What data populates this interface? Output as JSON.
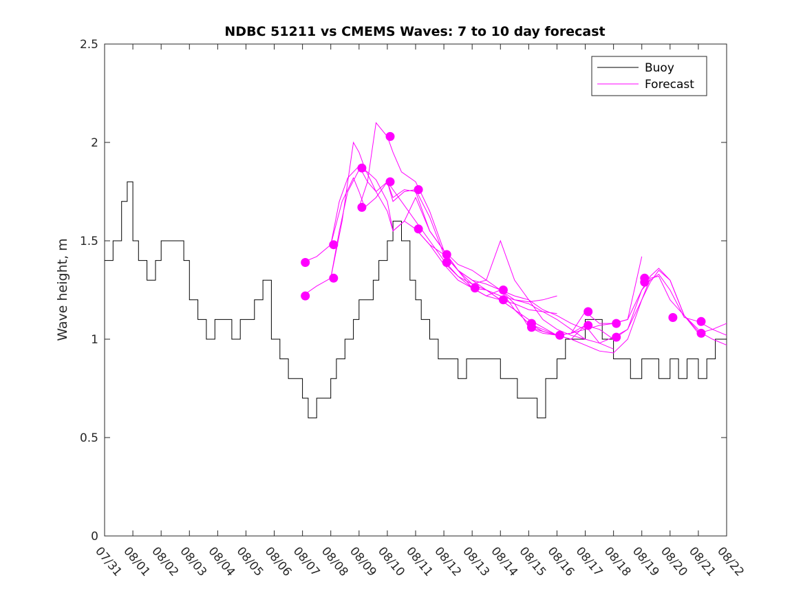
{
  "chart_data": {
    "type": "line",
    "title": "NDBC 51211 vs CMEMS Waves: 7 to 10 day forecast",
    "xlabel": "",
    "ylabel": "Wave height, m",
    "xlim": [
      0,
      22
    ],
    "ylim": [
      0,
      2.5
    ],
    "yticks": [
      0,
      0.5,
      1,
      1.5,
      2,
      2.5
    ],
    "ytick_labels": [
      "0",
      "0.5",
      "1",
      "1.5",
      "2",
      "2.5"
    ],
    "xticks": [
      0,
      1,
      2,
      3,
      4,
      5,
      6,
      7,
      8,
      9,
      10,
      11,
      12,
      13,
      14,
      15,
      16,
      17,
      18,
      19,
      20,
      21,
      22
    ],
    "xtick_labels": [
      "07/31",
      "08/01",
      "08/02",
      "08/03",
      "08/04",
      "08/05",
      "08/06",
      "08/07",
      "08/08",
      "08/09",
      "08/10",
      "08/11",
      "08/12",
      "08/13",
      "08/14",
      "08/15",
      "08/16",
      "08/17",
      "08/18",
      "08/19",
      "08/20",
      "08/21",
      "08/22"
    ],
    "legend": {
      "position": "top-right",
      "entries": [
        "Buoy",
        "Forecast"
      ]
    },
    "colors": {
      "buoy": "#000000",
      "forecast": "#ff00ff"
    },
    "series": [
      {
        "name": "Buoy",
        "x": [
          0,
          0.3,
          0.6,
          0.8,
          1.0,
          1.2,
          1.5,
          1.8,
          2.0,
          2.2,
          2.5,
          2.8,
          3.0,
          3.3,
          3.6,
          3.9,
          4.2,
          4.5,
          4.8,
          5.0,
          5.3,
          5.6,
          5.9,
          6.2,
          6.5,
          6.8,
          7.0,
          7.2,
          7.5,
          7.8,
          8.0,
          8.2,
          8.5,
          8.8,
          9.0,
          9.2,
          9.5,
          9.7,
          10.0,
          10.2,
          10.5,
          10.8,
          11.0,
          11.2,
          11.5,
          11.8,
          12.0,
          12.2,
          12.5,
          12.8,
          13.0,
          13.3,
          13.6,
          14.0,
          14.3,
          14.6,
          15.0,
          15.3,
          15.6,
          16.0,
          16.3,
          16.6,
          17.0,
          17.3,
          17.6,
          18.0,
          18.3,
          18.6,
          19.0,
          19.3,
          19.6,
          20.0,
          20.3,
          20.6,
          21.0,
          21.3,
          21.6,
          22.0
        ],
        "values": [
          1.4,
          1.5,
          1.7,
          1.8,
          1.5,
          1.4,
          1.3,
          1.4,
          1.5,
          1.5,
          1.5,
          1.4,
          1.2,
          1.1,
          1.0,
          1.1,
          1.1,
          1.0,
          1.1,
          1.1,
          1.2,
          1.3,
          1.0,
          0.9,
          0.8,
          0.8,
          0.7,
          0.6,
          0.7,
          0.7,
          0.8,
          0.9,
          1.0,
          1.1,
          1.2,
          1.2,
          1.3,
          1.4,
          1.5,
          1.6,
          1.5,
          1.3,
          1.2,
          1.1,
          1.0,
          0.9,
          0.9,
          0.9,
          0.8,
          0.9,
          0.9,
          0.9,
          0.9,
          0.8,
          0.8,
          0.7,
          0.7,
          0.6,
          0.8,
          0.9,
          1.0,
          1.0,
          1.1,
          1.1,
          1.0,
          0.9,
          0.9,
          0.8,
          0.9,
          0.9,
          0.8,
          0.9,
          0.8,
          0.9,
          0.8,
          0.9,
          1.0,
          1.0
        ]
      },
      {
        "name": "Forecast",
        "x": [
          7.0,
          7.5,
          8.0,
          8.3,
          8.6,
          9.0,
          9.3,
          9.6,
          10.0,
          10.2,
          10.6,
          11.0,
          11.5,
          12.0,
          12.5,
          13.0,
          13.5,
          14.0,
          14.5,
          15.0,
          15.5,
          16.0
        ],
        "values": [
          1.22,
          1.27,
          1.31,
          1.55,
          1.75,
          1.86,
          1.85,
          1.81,
          1.7,
          1.55,
          1.6,
          1.72,
          1.55,
          1.45,
          1.35,
          1.3,
          1.25,
          1.2,
          1.18,
          1.15,
          1.14,
          1.13
        ]
      },
      {
        "name": "Forecast",
        "x": [
          7.0,
          7.5,
          8.0,
          8.3,
          8.6,
          9.0,
          9.3,
          9.6,
          10.0,
          10.2,
          10.6,
          11.0,
          11.5,
          12.0,
          12.5,
          13.0,
          13.5,
          14.0,
          14.5,
          15.0,
          15.5,
          16.0
        ],
        "values": [
          1.39,
          1.42,
          1.48,
          1.7,
          1.82,
          1.88,
          1.8,
          1.75,
          1.65,
          1.55,
          1.6,
          1.56,
          1.48,
          1.38,
          1.3,
          1.26,
          1.25,
          1.22,
          1.2,
          1.19,
          1.2,
          1.22
        ]
      },
      {
        "name": "Forecast",
        "x": [
          8.0,
          8.4,
          8.8,
          9.0,
          9.2,
          9.6,
          10.0,
          10.2,
          10.6,
          11.0,
          11.5,
          12.0,
          12.5,
          13.0,
          13.5,
          14.0,
          14.5,
          15.0,
          15.5,
          16.0,
          16.5,
          17.0
        ],
        "values": [
          1.31,
          1.6,
          2.0,
          1.95,
          1.87,
          1.75,
          1.8,
          1.72,
          1.76,
          1.75,
          1.55,
          1.45,
          1.38,
          1.35,
          1.3,
          1.25,
          1.2,
          1.18,
          1.14,
          1.1,
          1.05,
          1.0
        ]
      },
      {
        "name": "Forecast",
        "x": [
          8.0,
          8.4,
          8.8,
          9.0,
          9.2,
          9.6,
          10.0,
          10.2,
          10.6,
          11.0,
          11.5,
          12.0,
          12.5,
          13.0,
          13.5,
          14.0,
          14.5,
          15.0,
          15.5,
          16.0,
          16.5,
          17.0
        ],
        "values": [
          1.48,
          1.7,
          1.82,
          1.75,
          1.67,
          1.72,
          1.8,
          1.7,
          1.75,
          1.76,
          1.62,
          1.43,
          1.35,
          1.3,
          1.28,
          1.25,
          1.22,
          1.2,
          1.15,
          1.12,
          1.08,
          1.05
        ]
      },
      {
        "name": "Forecast",
        "x": [
          9.0,
          9.3,
          9.6,
          10.0,
          10.2,
          10.5,
          11.0,
          11.5,
          12.0,
          12.5,
          13.0,
          13.5,
          14.0,
          14.5,
          15.0,
          15.5,
          16.0,
          16.5,
          17.0,
          17.5,
          18.0
        ],
        "values": [
          1.67,
          1.8,
          2.1,
          2.03,
          1.95,
          1.85,
          1.8,
          1.65,
          1.45,
          1.35,
          1.28,
          1.3,
          1.5,
          1.3,
          1.2,
          1.1,
          1.05,
          1.02,
          1.0,
          0.98,
          0.95
        ]
      },
      {
        "name": "Forecast",
        "x": [
          10.0,
          10.5,
          11.0,
          11.5,
          12.0,
          12.5,
          13.0,
          13.5,
          14.0,
          14.5,
          15.0,
          15.5,
          16.0,
          16.5,
          17.0,
          17.5,
          18.0,
          18.5,
          19.0
        ],
        "values": [
          1.8,
          1.7,
          1.6,
          1.5,
          1.4,
          1.32,
          1.28,
          1.25,
          1.2,
          1.15,
          1.1,
          1.06,
          1.02,
          1.03,
          1.05,
          1.07,
          1.08,
          1.1,
          1.42
        ]
      },
      {
        "name": "Forecast",
        "x": [
          11.0,
          11.5,
          12.0,
          12.5,
          13.0,
          13.5,
          14.0,
          14.5,
          15.0,
          15.5,
          16.0,
          16.5,
          17.0,
          17.5,
          18.0,
          18.5,
          19.0,
          19.3,
          19.6,
          20.0,
          20.5,
          21.0
        ],
        "values": [
          1.56,
          1.48,
          1.43,
          1.35,
          1.26,
          1.22,
          1.2,
          1.15,
          1.08,
          1.05,
          1.02,
          1.03,
          1.07,
          1.05,
          1.0,
          1.05,
          1.2,
          1.31,
          1.32,
          1.2,
          1.12,
          1.05
        ]
      },
      {
        "name": "Forecast",
        "x": [
          12.0,
          12.5,
          13.0,
          13.5,
          14.0,
          14.5,
          15.0,
          15.5,
          16.0,
          16.5,
          17.0,
          17.5,
          18.0,
          18.5,
          19.0,
          19.3,
          19.6,
          20.0,
          20.5,
          21.0,
          21.5,
          22.0
        ],
        "values": [
          1.39,
          1.32,
          1.26,
          1.22,
          1.25,
          1.18,
          1.06,
          1.04,
          1.02,
          1.03,
          1.14,
          1.08,
          1.08,
          1.1,
          1.25,
          1.3,
          1.33,
          1.25,
          1.11,
          1.09,
          1.05,
          1.02
        ]
      },
      {
        "name": "Forecast",
        "x": [
          14.0,
          14.5,
          15.0,
          15.5,
          16.0,
          16.5,
          17.0,
          17.5,
          18.0,
          18.5,
          19.0,
          19.3,
          19.6,
          20.0,
          20.5,
          21.0,
          21.5,
          22.0
        ],
        "values": [
          1.25,
          1.15,
          1.08,
          1.04,
          1.02,
          1.0,
          1.07,
          0.98,
          1.01,
          1.05,
          1.25,
          1.32,
          1.36,
          1.3,
          1.12,
          1.03,
          1.05,
          1.08
        ]
      },
      {
        "name": "Forecast",
        "x": [
          15.0,
          15.5,
          16.0,
          16.5,
          17.0,
          17.5,
          18.0,
          18.5,
          19.0,
          19.3,
          19.6,
          20.0,
          20.5,
          21.0,
          21.5,
          22.0
        ],
        "values": [
          1.06,
          1.03,
          1.02,
          1.0,
          0.97,
          0.94,
          0.93,
          1.0,
          1.2,
          1.29,
          1.35,
          1.3,
          1.12,
          1.04,
          1.0,
          0.97
        ]
      }
    ],
    "markers": {
      "name": "Forecast verification points",
      "x": [
        7.1,
        7.1,
        8.1,
        8.1,
        9.1,
        9.1,
        10.1,
        10.1,
        11.1,
        11.1,
        12.1,
        12.1,
        13.1,
        14.1,
        14.1,
        15.1,
        15.1,
        16.1,
        17.1,
        17.1,
        18.1,
        18.1,
        19.1,
        19.1,
        20.1,
        21.1,
        21.1
      ],
      "values": [
        1.39,
        1.22,
        1.48,
        1.31,
        1.87,
        1.67,
        2.03,
        1.8,
        1.76,
        1.56,
        1.43,
        1.39,
        1.26,
        1.25,
        1.2,
        1.08,
        1.06,
        1.02,
        1.14,
        1.07,
        1.08,
        1.01,
        1.31,
        1.29,
        1.11,
        1.09,
        1.03
      ]
    }
  }
}
